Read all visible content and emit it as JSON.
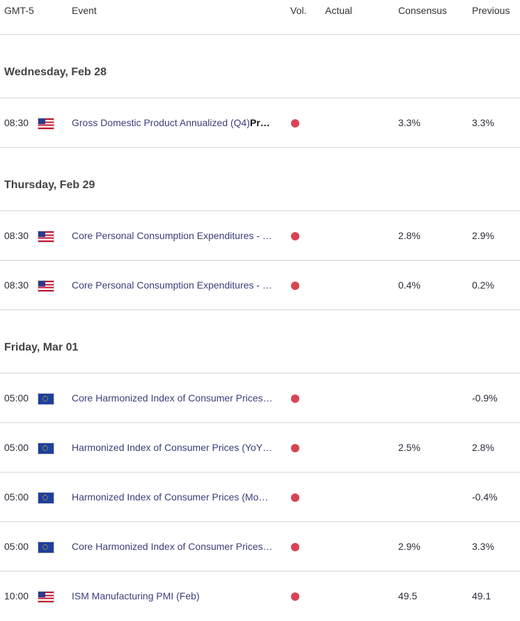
{
  "header": {
    "timezone": "GMT-5",
    "event": "Event",
    "vol": "Vol.",
    "actual": "Actual",
    "consensus": "Consensus",
    "previous": "Previous"
  },
  "colors": {
    "volatility_high": "#d94452",
    "event_text": "#3a3f7a"
  },
  "days": [
    {
      "label": "Wednesday, Feb 28",
      "events": [
        {
          "time": "08:30",
          "flag": "us-flag-icon",
          "name": "Gross Domestic Product Annualized (Q4)",
          "suffix": "Pr…",
          "consensus": "3.3%",
          "previous": "3.3%"
        }
      ]
    },
    {
      "label": "Thursday, Feb 29",
      "events": [
        {
          "time": "08:30",
          "flag": "us-flag-icon",
          "name": "Core Personal Consumption Expenditures - …",
          "suffix": "",
          "consensus": "2.8%",
          "previous": "2.9%"
        },
        {
          "time": "08:30",
          "flag": "us-flag-icon",
          "name": "Core Personal Consumption Expenditures - …",
          "suffix": "",
          "consensus": "0.4%",
          "previous": "0.2%"
        }
      ]
    },
    {
      "label": "Friday, Mar 01",
      "events": [
        {
          "time": "05:00",
          "flag": "eu-flag-icon",
          "name": "Core Harmonized Index of Consumer Prices…",
          "suffix": "",
          "consensus": "",
          "previous": "-0.9%"
        },
        {
          "time": "05:00",
          "flag": "eu-flag-icon",
          "name": "Harmonized Index of Consumer Prices (YoY…",
          "suffix": "",
          "consensus": "2.5%",
          "previous": "2.8%"
        },
        {
          "time": "05:00",
          "flag": "eu-flag-icon",
          "name": "Harmonized Index of Consumer Prices (Mo…",
          "suffix": "",
          "consensus": "",
          "previous": "-0.4%"
        },
        {
          "time": "05:00",
          "flag": "eu-flag-icon",
          "name": "Core Harmonized Index of Consumer Prices…",
          "suffix": "",
          "consensus": "2.9%",
          "previous": "3.3%"
        },
        {
          "time": "10:00",
          "flag": "us-flag-icon",
          "name": "ISM Manufacturing PMI (Feb)",
          "suffix": "",
          "consensus": "49.5",
          "previous": "49.1"
        }
      ]
    }
  ]
}
